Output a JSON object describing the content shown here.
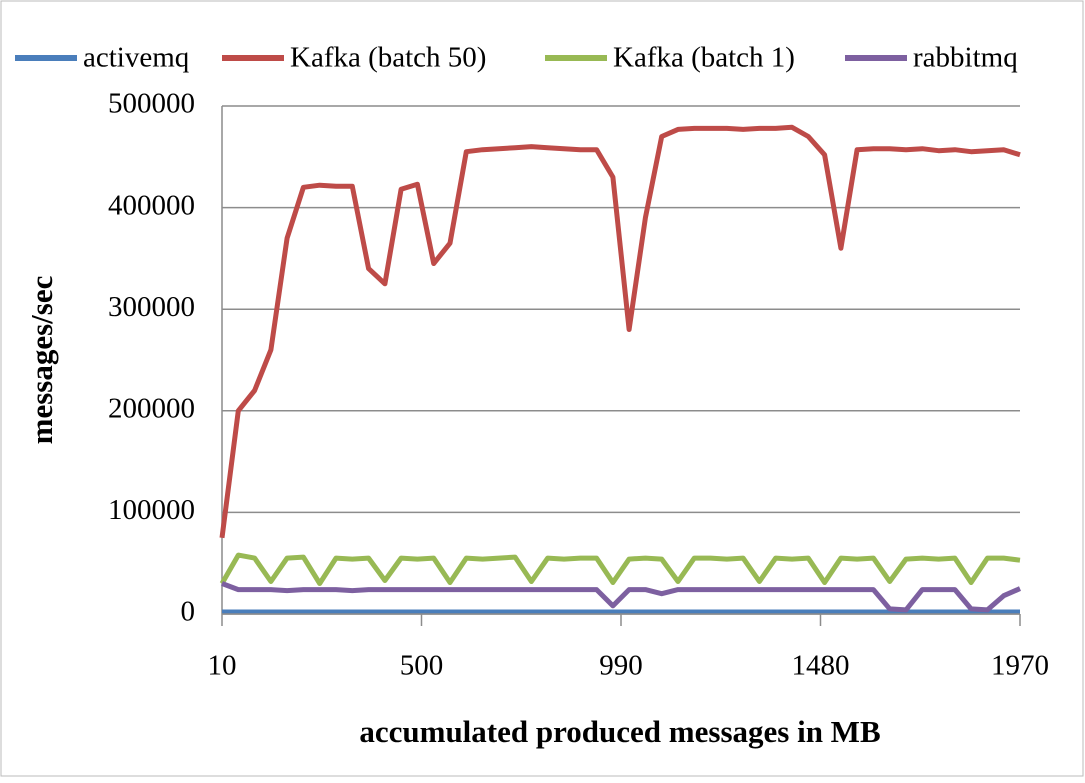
{
  "chart_data": {
    "type": "line",
    "x_label": "accumulated produced messages in MB",
    "y_label": "messages/sec",
    "x": [
      10,
      50,
      90,
      130,
      170,
      210,
      250,
      290,
      330,
      370,
      410,
      450,
      490,
      530,
      570,
      610,
      650,
      690,
      730,
      770,
      810,
      850,
      890,
      930,
      970,
      1010,
      1050,
      1090,
      1130,
      1170,
      1210,
      1250,
      1290,
      1330,
      1370,
      1410,
      1450,
      1490,
      1530,
      1570,
      1610,
      1650,
      1690,
      1730,
      1770,
      1810,
      1850,
      1890,
      1930,
      1970
    ],
    "xlim": [
      10,
      1970
    ],
    "xticks": [
      10,
      500,
      990,
      1480,
      1970
    ],
    "ylim": [
      0,
      500000
    ],
    "yticks": [
      0,
      100000,
      200000,
      300000,
      400000,
      500000
    ],
    "grid": true,
    "legend": "top",
    "series": [
      {
        "name": "activemq",
        "color": "#4a7ebb",
        "values": [
          2000,
          2000,
          2000,
          2000,
          2000,
          2000,
          2000,
          2000,
          2000,
          2000,
          2000,
          2000,
          2000,
          2000,
          2000,
          2000,
          2000,
          2000,
          2000,
          2000,
          2000,
          2000,
          2000,
          2000,
          2000,
          2000,
          2000,
          2000,
          2000,
          2000,
          2000,
          2000,
          2000,
          2000,
          2000,
          2000,
          2000,
          2000,
          2000,
          2000,
          2000,
          2000,
          2000,
          2000,
          2000,
          2000,
          2000,
          2000,
          2000,
          2000
        ]
      },
      {
        "name": "Kafka (batch 50)",
        "color": "#be4b48",
        "values": [
          75000,
          200000,
          220000,
          260000,
          370000,
          420000,
          422000,
          421000,
          421000,
          340000,
          325000,
          418000,
          423000,
          345000,
          365000,
          455000,
          457000,
          458000,
          459000,
          460000,
          459000,
          458000,
          457000,
          457000,
          430000,
          280000,
          390000,
          470000,
          477000,
          478000,
          478000,
          478000,
          477000,
          478000,
          478000,
          479000,
          470000,
          452000,
          360000,
          457000,
          458000,
          458000,
          457000,
          458000,
          456000,
          457000,
          455000,
          456000,
          457000,
          452000
        ]
      },
      {
        "name": "Kafka (batch 1)",
        "color": "#98b954",
        "values": [
          30000,
          58000,
          55000,
          32000,
          55000,
          56000,
          30000,
          55000,
          54000,
          55000,
          33000,
          55000,
          54000,
          55000,
          31000,
          55000,
          54000,
          55000,
          56000,
          32000,
          55000,
          54000,
          55000,
          55000,
          31000,
          54000,
          55000,
          54000,
          32000,
          55000,
          55000,
          54000,
          55000,
          32000,
          55000,
          54000,
          55000,
          31000,
          55000,
          54000,
          55000,
          32000,
          54000,
          55000,
          54000,
          55000,
          31000,
          55000,
          55000,
          53000
        ]
      },
      {
        "name": "rabbitmq",
        "color": "#7d60a0",
        "values": [
          30000,
          24000,
          24000,
          24000,
          23000,
          24000,
          24000,
          24000,
          23000,
          24000,
          24000,
          24000,
          24000,
          24000,
          24000,
          24000,
          24000,
          24000,
          24000,
          24000,
          24000,
          24000,
          24000,
          24000,
          8000,
          24000,
          24000,
          20000,
          24000,
          24000,
          24000,
          24000,
          24000,
          24000,
          24000,
          24000,
          24000,
          24000,
          24000,
          24000,
          24000,
          5000,
          4000,
          24000,
          24000,
          24000,
          5000,
          4000,
          18000,
          25000
        ]
      }
    ]
  }
}
